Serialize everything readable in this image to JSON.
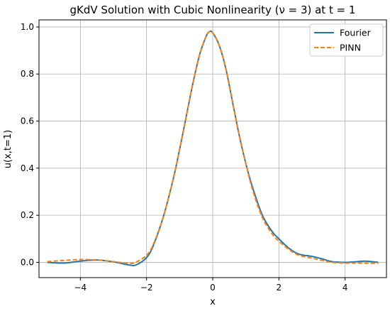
{
  "chart_data": {
    "type": "line",
    "title": "gKdV Solution with Cubic Nonlinearity (ν = 3) at t = 1",
    "xlabel": "x",
    "ylabel": "u(x,t=1)",
    "xlim": [
      -5.25,
      5.25
    ],
    "ylim": [
      -0.065,
      1.03
    ],
    "xticks": [
      -4,
      -2,
      0,
      2,
      4
    ],
    "xtick_labels": [
      "−4",
      "−2",
      "0",
      "2",
      "4"
    ],
    "yticks": [
      0.0,
      0.2,
      0.4,
      0.6,
      0.8,
      1.0
    ],
    "ytick_labels": [
      "0.0",
      "0.2",
      "0.4",
      "0.6",
      "0.8",
      "1.0"
    ],
    "grid": true,
    "legend_position": "top-right",
    "series": [
      {
        "name": "Fourier",
        "color": "#1f77b4",
        "style": "solid",
        "x": [
          -5.0,
          -4.5,
          -4.0,
          -3.5,
          -3.0,
          -2.5,
          -2.3,
          -2.0,
          -1.8,
          -1.5,
          -1.2,
          -1.0,
          -0.8,
          -0.6,
          -0.4,
          -0.2,
          -0.1,
          0.0,
          0.2,
          0.4,
          0.6,
          0.8,
          1.0,
          1.2,
          1.5,
          1.8,
          2.0,
          2.3,
          2.6,
          3.0,
          3.3,
          3.6,
          4.0,
          4.3,
          4.6,
          5.0
        ],
        "y": [
          0.0,
          -0.003,
          0.005,
          0.01,
          0.002,
          -0.012,
          -0.01,
          0.02,
          0.07,
          0.19,
          0.35,
          0.48,
          0.62,
          0.76,
          0.88,
          0.96,
          0.98,
          0.975,
          0.92,
          0.82,
          0.68,
          0.54,
          0.42,
          0.32,
          0.2,
          0.13,
          0.1,
          0.06,
          0.035,
          0.025,
          0.015,
          0.003,
          0.0,
          0.002,
          0.005,
          0.0
        ]
      },
      {
        "name": "PINN",
        "color": "#ff7f0e",
        "style": "dashed",
        "x": [
          -5.0,
          -4.5,
          -4.0,
          -3.5,
          -3.0,
          -2.5,
          -2.3,
          -2.0,
          -1.8,
          -1.5,
          -1.2,
          -1.0,
          -0.8,
          -0.6,
          -0.4,
          -0.2,
          -0.1,
          0.0,
          0.2,
          0.4,
          0.6,
          0.8,
          1.0,
          1.2,
          1.5,
          1.8,
          2.0,
          2.3,
          2.6,
          3.0,
          3.3,
          3.6,
          4.0,
          4.3,
          4.6,
          5.0
        ],
        "y": [
          0.003,
          0.008,
          0.012,
          0.01,
          0.003,
          -0.005,
          0.002,
          0.03,
          0.075,
          0.19,
          0.35,
          0.48,
          0.62,
          0.76,
          0.88,
          0.96,
          0.98,
          0.975,
          0.92,
          0.82,
          0.68,
          0.54,
          0.42,
          0.31,
          0.19,
          0.12,
          0.09,
          0.055,
          0.03,
          0.018,
          0.008,
          0.0,
          -0.003,
          -0.003,
          -0.004,
          -0.004
        ]
      }
    ]
  }
}
